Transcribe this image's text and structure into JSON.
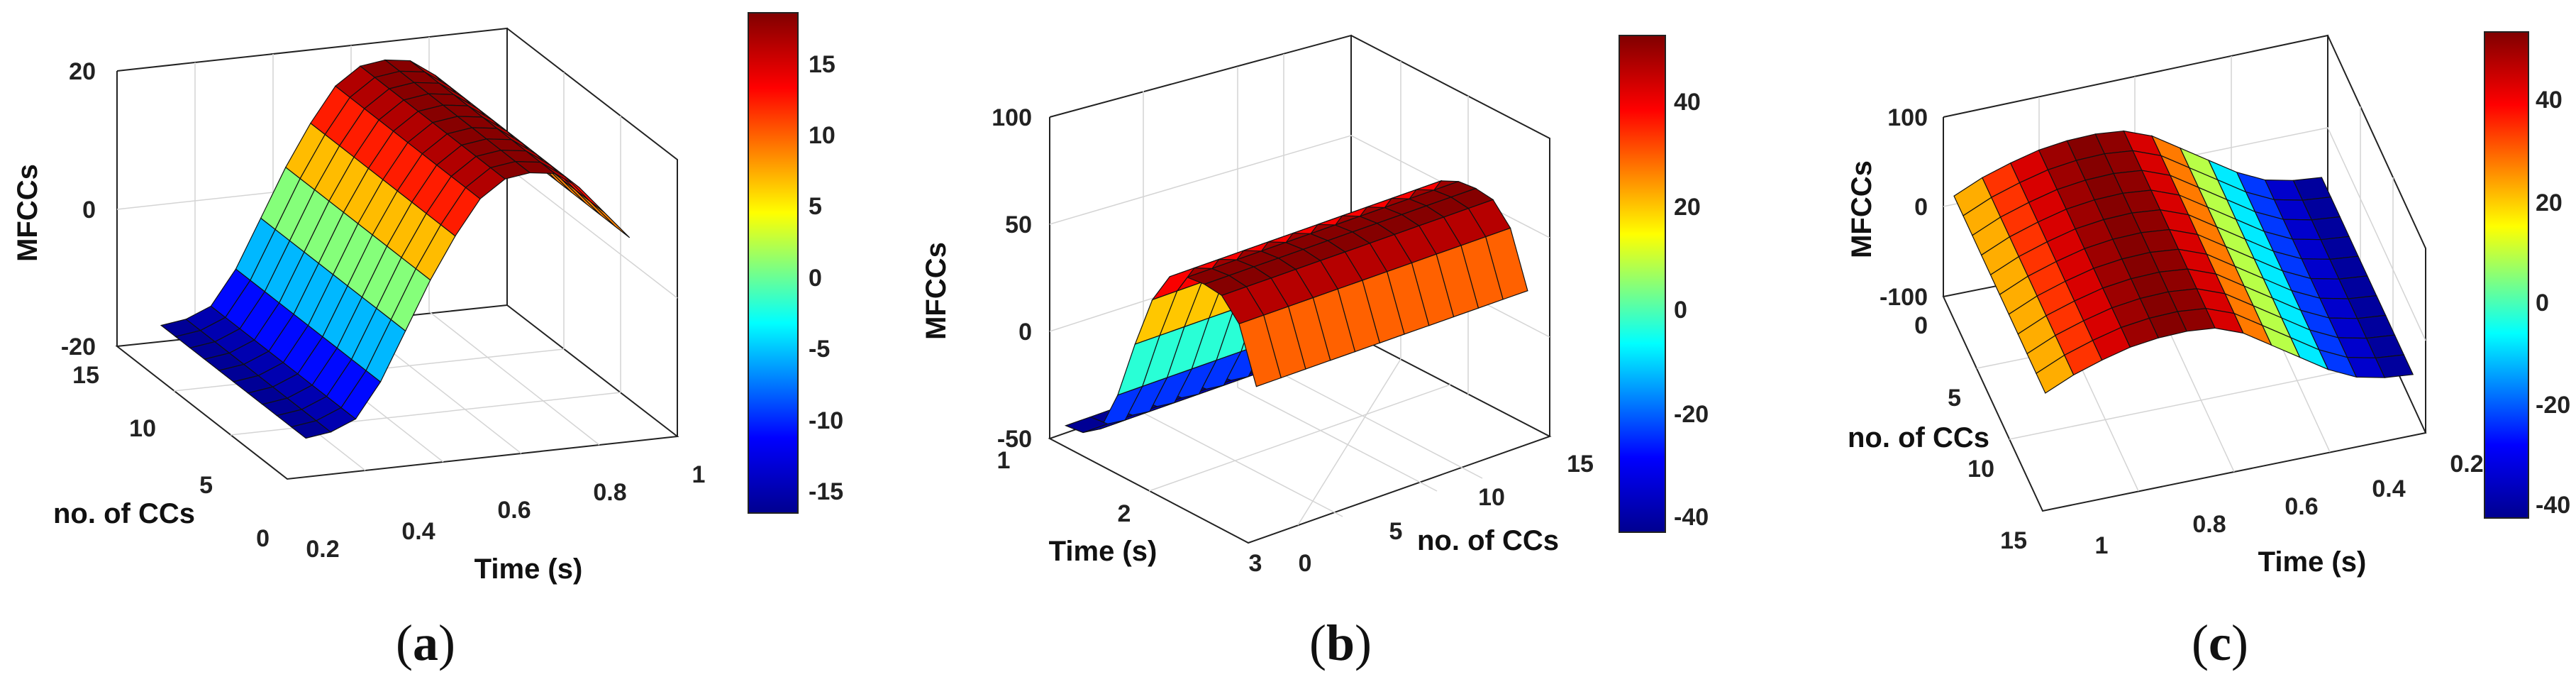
{
  "figure": {
    "colormap": "jet",
    "colormap_stops": [
      "#00008f",
      "#0000ff",
      "#00ffff",
      "#ffff00",
      "#ff0000",
      "#800000"
    ]
  },
  "chart_data": [
    {
      "panel_label": "a",
      "type": "surface3d",
      "zlabel": "MFCCs",
      "xlabel": "Time (s)",
      "ylabel": "no. of CCs",
      "x_ticks": [
        "0.2",
        "0.4",
        "0.6",
        "0.8",
        "1"
      ],
      "y_ticks": [
        "0",
        "5",
        "10",
        "15"
      ],
      "z_ticks": [
        "-20",
        "0",
        "20"
      ],
      "zlim": [
        -20,
        20
      ],
      "colorbar_ticks": [
        "15",
        "10",
        "5",
        "0",
        "-5",
        "-10",
        "-15"
      ],
      "colorbar_range": [
        -17,
        18
      ],
      "surface_profile": [
        -17,
        -16.5,
        -15,
        -10,
        -3,
        4,
        10,
        15,
        17.5,
        18,
        17.5,
        15,
        11,
        7
      ]
    },
    {
      "panel_label": "b",
      "type": "surface3d",
      "zlabel": "MFCCs",
      "xlabel": "Time (s)",
      "ylabel": "no. of CCs",
      "x_ticks": [
        "1",
        "2",
        "3"
      ],
      "y_ticks": [
        "0",
        "5",
        "10",
        "15"
      ],
      "z_ticks": [
        "-50",
        "0",
        "50",
        "100"
      ],
      "zlim": [
        -50,
        100
      ],
      "colorbar_ticks": [
        "40",
        "20",
        "0",
        "-20",
        "-40"
      ],
      "colorbar_range": [
        -45,
        55
      ],
      "surface_profile": [
        20,
        45,
        54,
        55,
        54,
        50,
        35,
        10,
        -18,
        -38,
        -44,
        -45
      ]
    },
    {
      "panel_label": "c",
      "type": "surface3d",
      "zlabel": "MFCCs",
      "xlabel": "Time (s)",
      "ylabel": "no. of CCs",
      "x_ticks": [
        "1",
        "0.8",
        "0.6",
        "0.4",
        "0.2"
      ],
      "y_ticks": [
        "0",
        "5",
        "10",
        "15"
      ],
      "z_ticks": [
        "-100",
        "0",
        "100"
      ],
      "zlim": [
        -100,
        100
      ],
      "colorbar_ticks": [
        "40",
        "20",
        "0",
        "-20",
        "-40"
      ],
      "colorbar_range": [
        -45,
        55
      ],
      "surface_profile": [
        18,
        32,
        42,
        50,
        54,
        55,
        52,
        40,
        20,
        0,
        -20,
        -35,
        -42,
        -45
      ]
    }
  ]
}
